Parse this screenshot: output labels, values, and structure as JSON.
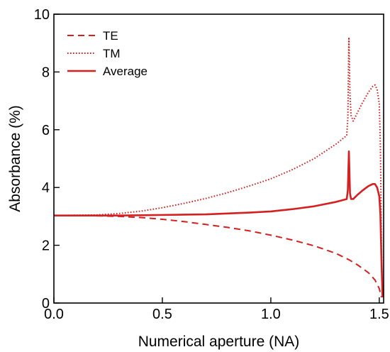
{
  "chart_data": {
    "type": "line",
    "xlabel": "Numerical aperture (NA)",
    "ylabel": "Absorbance (%)",
    "xlim": [
      0,
      1.52
    ],
    "ylim": [
      0,
      10
    ],
    "xticks": [
      0.0,
      0.5,
      1.0,
      1.5
    ],
    "xtick_labels": [
      "0.0",
      "0.5",
      "1.0",
      "1.5"
    ],
    "yticks": [
      0,
      2,
      4,
      6,
      8,
      10
    ],
    "ytick_labels": [
      "0",
      "2",
      "4",
      "6",
      "8",
      "10"
    ],
    "grid": false,
    "legend_position": "top-left",
    "color": "#d42020",
    "series": [
      {
        "name": "TE",
        "style": "dashed",
        "x": [
          0.0,
          0.1,
          0.2,
          0.3,
          0.4,
          0.5,
          0.6,
          0.7,
          0.8,
          0.9,
          1.0,
          1.1,
          1.2,
          1.3,
          1.36,
          1.4,
          1.45,
          1.48,
          1.5,
          1.51
        ],
        "y": [
          3.03,
          3.03,
          3.02,
          3.0,
          2.96,
          2.9,
          2.82,
          2.72,
          2.62,
          2.5,
          2.35,
          2.18,
          1.98,
          1.72,
          1.5,
          1.32,
          1.05,
          0.8,
          0.5,
          0.2
        ]
      },
      {
        "name": "TM",
        "style": "dotted",
        "x": [
          0.0,
          0.1,
          0.2,
          0.3,
          0.4,
          0.5,
          0.6,
          0.7,
          0.8,
          0.9,
          1.0,
          1.1,
          1.2,
          1.3,
          1.35,
          1.355,
          1.36,
          1.365,
          1.37,
          1.38,
          1.4,
          1.42,
          1.45,
          1.47,
          1.48,
          1.49,
          1.5,
          1.505,
          1.51,
          1.515
        ],
        "y": [
          3.03,
          3.04,
          3.05,
          3.1,
          3.18,
          3.3,
          3.45,
          3.62,
          3.82,
          4.05,
          4.3,
          4.62,
          5.0,
          5.5,
          5.8,
          6.4,
          9.2,
          7.2,
          6.5,
          6.3,
          6.6,
          6.9,
          7.3,
          7.5,
          7.55,
          7.4,
          6.9,
          5.5,
          2.0,
          0.2
        ]
      },
      {
        "name": "Average",
        "style": "solid",
        "x": [
          0.0,
          0.1,
          0.2,
          0.3,
          0.4,
          0.5,
          0.6,
          0.7,
          0.8,
          0.9,
          1.0,
          1.1,
          1.2,
          1.3,
          1.35,
          1.355,
          1.36,
          1.365,
          1.37,
          1.38,
          1.4,
          1.42,
          1.45,
          1.47,
          1.48,
          1.49,
          1.5,
          1.505,
          1.51,
          1.515
        ],
        "y": [
          3.03,
          3.03,
          3.03,
          3.03,
          3.04,
          3.05,
          3.06,
          3.07,
          3.1,
          3.13,
          3.17,
          3.25,
          3.35,
          3.5,
          3.6,
          3.9,
          5.25,
          3.8,
          3.6,
          3.6,
          3.75,
          3.88,
          4.05,
          4.12,
          4.12,
          4.0,
          3.7,
          3.1,
          1.5,
          0.2
        ]
      }
    ]
  }
}
